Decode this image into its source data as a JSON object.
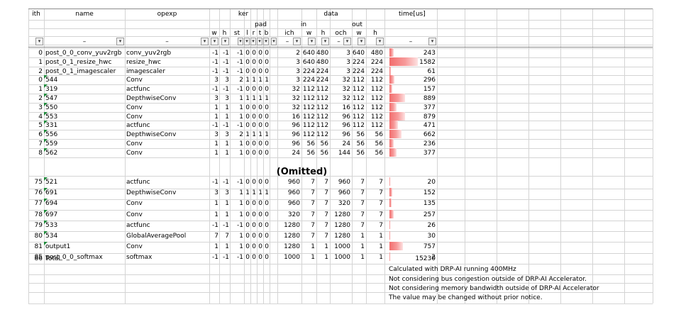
{
  "header": {
    "ith": "ith",
    "name": "name",
    "opexp": "opexp",
    "ker": "ker",
    "data": "data",
    "time": "time[us]",
    "pad": "pad",
    "in": "in",
    "out": "out",
    "sub": [
      "w",
      "h",
      "st",
      "l",
      "r",
      "t",
      "b",
      "ich",
      "w",
      "h",
      "och",
      "w",
      "h"
    ]
  },
  "filter_row": {
    "ith": "",
    "name": "–",
    "opexp": "–",
    "sub": [
      "",
      "",
      "",
      "",
      "",
      "",
      "",
      "–",
      "",
      "",
      "–",
      "",
      ""
    ],
    "time": "–",
    "dropdown_icon": "chevron-down-icon"
  },
  "rows_top": [
    [
      "0",
      "post_0_0_conv_yuv2rgb",
      "conv_yuv2rgb",
      "-1",
      "-1",
      "-1",
      "0",
      "0",
      "0",
      "0",
      "2",
      "640",
      "480",
      "3",
      "640",
      "480",
      "243"
    ],
    [
      "1",
      "post_0_1_resize_hwc",
      "resize_hwc",
      "-1",
      "-1",
      "-1",
      "0",
      "0",
      "0",
      "0",
      "3",
      "640",
      "480",
      "3",
      "224",
      "224",
      "1582"
    ],
    [
      "2",
      "post_0_1_imagescaler",
      "imagescaler",
      "-1",
      "-1",
      "-1",
      "0",
      "0",
      "0",
      "0",
      "3",
      "224",
      "224",
      "3",
      "224",
      "224",
      "61"
    ],
    [
      "0",
      "544",
      "Conv",
      "3",
      "3",
      "2",
      "1",
      "1",
      "1",
      "1",
      "3",
      "224",
      "224",
      "32",
      "112",
      "112",
      "296"
    ],
    [
      "1",
      "319",
      "actfunc",
      "-1",
      "-1",
      "-1",
      "0",
      "0",
      "0",
      "0",
      "32",
      "112",
      "112",
      "32",
      "112",
      "112",
      "157"
    ],
    [
      "2",
      "547",
      "DepthwiseConv",
      "3",
      "3",
      "1",
      "1",
      "1",
      "1",
      "1",
      "32",
      "112",
      "112",
      "32",
      "112",
      "112",
      "889"
    ],
    [
      "3",
      "550",
      "Conv",
      "1",
      "1",
      "1",
      "0",
      "0",
      "0",
      "0",
      "32",
      "112",
      "112",
      "16",
      "112",
      "112",
      "377"
    ],
    [
      "4",
      "553",
      "Conv",
      "1",
      "1",
      "1",
      "0",
      "0",
      "0",
      "0",
      "16",
      "112",
      "112",
      "96",
      "112",
      "112",
      "879"
    ],
    [
      "5",
      "331",
      "actfunc",
      "-1",
      "-1",
      "-1",
      "0",
      "0",
      "0",
      "0",
      "96",
      "112",
      "112",
      "96",
      "112",
      "112",
      "471"
    ],
    [
      "6",
      "556",
      "DepthwiseConv",
      "3",
      "3",
      "2",
      "1",
      "1",
      "1",
      "1",
      "96",
      "112",
      "112",
      "96",
      "56",
      "56",
      "662"
    ],
    [
      "7",
      "559",
      "Conv",
      "1",
      "1",
      "1",
      "0",
      "0",
      "0",
      "0",
      "96",
      "56",
      "56",
      "24",
      "56",
      "56",
      "236"
    ],
    [
      "8",
      "562",
      "Conv",
      "1",
      "1",
      "1",
      "0",
      "0",
      "0",
      "0",
      "24",
      "56",
      "56",
      "144",
      "56",
      "56",
      "377"
    ]
  ],
  "omitted": "(Omitted)",
  "rows_bottom": [
    [
      "75",
      "521",
      "actfunc",
      "-1",
      "-1",
      "-1",
      "0",
      "0",
      "0",
      "0",
      "960",
      "7",
      "7",
      "960",
      "7",
      "7",
      "20"
    ],
    [
      "76",
      "691",
      "DepthwiseConv",
      "3",
      "3",
      "1",
      "1",
      "1",
      "1",
      "1",
      "960",
      "7",
      "7",
      "960",
      "7",
      "7",
      "152"
    ],
    [
      "77",
      "694",
      "Conv",
      "1",
      "1",
      "1",
      "0",
      "0",
      "0",
      "0",
      "960",
      "7",
      "7",
      "320",
      "7",
      "7",
      "135"
    ],
    [
      "78",
      "697",
      "Conv",
      "1",
      "1",
      "1",
      "0",
      "0",
      "0",
      "0",
      "320",
      "7",
      "7",
      "1280",
      "7",
      "7",
      "257"
    ],
    [
      "79",
      "533",
      "actfunc",
      "-1",
      "-1",
      "-1",
      "0",
      "0",
      "0",
      "0",
      "1280",
      "7",
      "7",
      "1280",
      "7",
      "7",
      "26"
    ],
    [
      "80",
      "534",
      "GlobalAveragePool",
      "7",
      "7",
      "1",
      "0",
      "0",
      "0",
      "0",
      "1280",
      "7",
      "7",
      "1280",
      "1",
      "1",
      "30"
    ],
    [
      "81",
      "output1",
      "Conv",
      "1",
      "1",
      "1",
      "0",
      "0",
      "0",
      "0",
      "1280",
      "1",
      "1",
      "1000",
      "1",
      "1",
      "757"
    ],
    [
      "85",
      "post_0_0_softmax",
      "softmax",
      "-1",
      "-1",
      "-1",
      "0",
      "0",
      "0",
      "0",
      "1000",
      "1",
      "1",
      "1000",
      "1",
      "1",
      "2"
    ]
  ],
  "total": {
    "ith": "86",
    "name": "Total",
    "time": "15230"
  },
  "notes": [
    "Calculated with DRP-AI running 400MHz",
    "Not considering bus congestion outside of DRP-AI Accelerator.",
    "Not considering memory bandwidth outside of DRP-AI Accelerator",
    "The value may be changed without prior notice."
  ],
  "colors": {
    "bar": "#f26d6d",
    "grid": "#d4d4d4",
    "comment_marker": "#1f8a3a"
  }
}
